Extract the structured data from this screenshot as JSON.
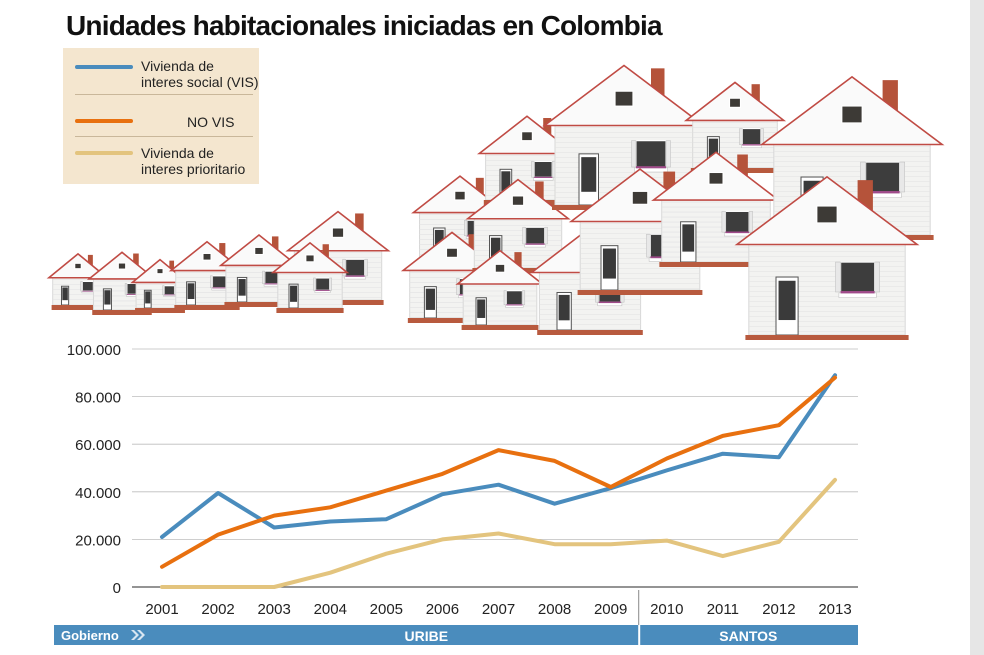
{
  "title": "Unidades habitacionales iniciadas en Colombia",
  "legend": {
    "items": [
      {
        "label_line1": "Vivienda de",
        "label_line2": "interes social (VIS)",
        "color": "#4a8cbd"
      },
      {
        "label_line1": "NO VIS",
        "label_line2": "",
        "color": "#e8700f"
      },
      {
        "label_line1": "Vivienda de",
        "label_line2": "interes prioritario",
        "color": "#e3c47e"
      }
    ]
  },
  "government": {
    "label": "Gobierno",
    "periods": [
      {
        "name": "URIBE",
        "from": "2001",
        "to": "2009"
      },
      {
        "name": "SANTOS",
        "from": "2010",
        "to": "2013"
      }
    ],
    "bar_color": "#4a8cbd"
  },
  "chart_data": {
    "type": "line",
    "title": "Unidades habitacionales iniciadas en Colombia",
    "x": [
      "2001",
      "2002",
      "2003",
      "2004",
      "2005",
      "2006",
      "2007",
      "2008",
      "2009",
      "2010",
      "2011",
      "2012",
      "2013"
    ],
    "ylim": [
      0,
      100000
    ],
    "yticks": [
      0,
      20000,
      40000,
      60000,
      80000,
      100000
    ],
    "ytick_labels": [
      "0",
      "20.000",
      "40.000",
      "60.000",
      "80.000",
      "100.000"
    ],
    "grid": true,
    "legend_position": "top-left",
    "series": [
      {
        "name": "Vivienda de interes social (VIS)",
        "color": "#4a8cbd",
        "values": [
          21000,
          39500,
          25000,
          27500,
          28500,
          39000,
          43000,
          35000,
          41500,
          49000,
          56000,
          54500,
          89000
        ]
      },
      {
        "name": "NO VIS",
        "color": "#e8700f",
        "values": [
          8500,
          22000,
          30000,
          33500,
          40500,
          47500,
          57500,
          53000,
          42000,
          54000,
          63500,
          68000,
          88000
        ]
      },
      {
        "name": "Vivienda de interes prioritario",
        "color": "#e3c47e",
        "values": [
          0,
          0,
          0,
          6000,
          14000,
          20000,
          22500,
          18000,
          18000,
          19500,
          13000,
          19000,
          45000
        ]
      }
    ]
  }
}
